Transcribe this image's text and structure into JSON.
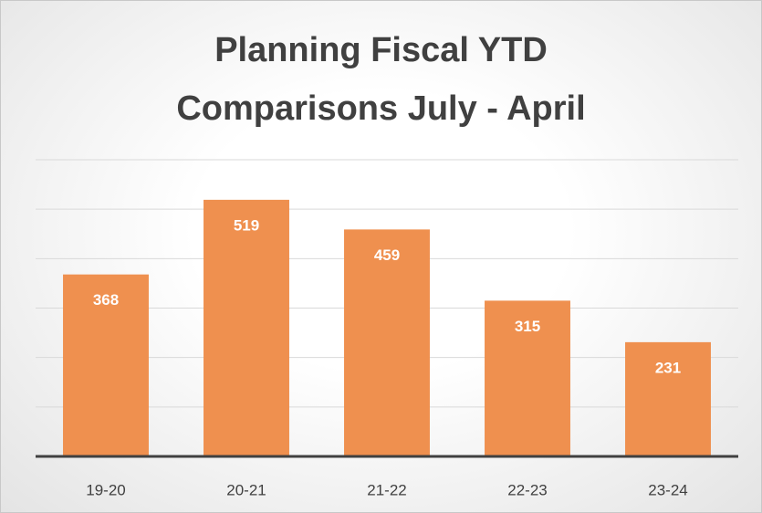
{
  "chart_data": {
    "type": "bar",
    "title": "Planning Fiscal YTD Comparisons July - April",
    "categories": [
      "19-20",
      "20-21",
      "21-22",
      "22-23",
      "23-24"
    ],
    "values": [
      368,
      519,
      459,
      315,
      231
    ],
    "color": "#ef904f",
    "ylim": [
      0,
      600
    ],
    "yticks": [
      0,
      100,
      200,
      300,
      400,
      500,
      600
    ],
    "grid": true
  }
}
